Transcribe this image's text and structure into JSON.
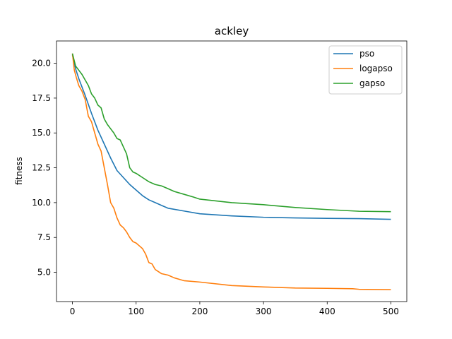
{
  "chart_data": {
    "type": "line",
    "title": "ackley",
    "xlabel": "",
    "ylabel": "fitness",
    "xlim": [
      -25,
      525
    ],
    "ylim": [
      2.9,
      21.6
    ],
    "xticks": [
      0,
      100,
      200,
      300,
      400,
      500
    ],
    "yticks": [
      5.0,
      7.5,
      10.0,
      12.5,
      15.0,
      17.5,
      20.0
    ],
    "grid": false,
    "legend_position": "top-right",
    "series": [
      {
        "name": "pso",
        "color": "#1f77b4",
        "x": [
          0,
          5,
          10,
          20,
          30,
          40,
          50,
          60,
          70,
          80,
          90,
          100,
          110,
          120,
          130,
          140,
          150,
          175,
          200,
          250,
          300,
          350,
          400,
          450,
          500
        ],
        "y": [
          20.6,
          19.6,
          18.9,
          17.7,
          16.4,
          15.2,
          14.2,
          13.2,
          12.3,
          11.8,
          11.3,
          10.9,
          10.5,
          10.2,
          10.0,
          9.8,
          9.6,
          9.4,
          9.2,
          9.05,
          8.95,
          8.9,
          8.87,
          8.85,
          8.8
        ]
      },
      {
        "name": "logapso",
        "color": "#ff7f0e",
        "x": [
          0,
          3,
          6,
          10,
          15,
          20,
          25,
          30,
          35,
          40,
          45,
          50,
          55,
          60,
          65,
          70,
          75,
          80,
          85,
          90,
          95,
          100,
          105,
          110,
          115,
          120,
          125,
          130,
          140,
          150,
          160,
          175,
          200,
          250,
          300,
          350,
          400,
          440,
          450,
          500
        ],
        "y": [
          20.7,
          19.5,
          19.0,
          18.4,
          18.0,
          17.4,
          16.2,
          15.8,
          15.0,
          14.2,
          13.7,
          12.5,
          11.3,
          10.0,
          9.6,
          8.9,
          8.4,
          8.2,
          7.9,
          7.5,
          7.2,
          7.1,
          6.9,
          6.7,
          6.3,
          5.7,
          5.6,
          5.2,
          4.9,
          4.8,
          4.6,
          4.4,
          4.3,
          4.05,
          3.95,
          3.87,
          3.85,
          3.82,
          3.78,
          3.75
        ]
      },
      {
        "name": "gapso",
        "color": "#2ca02c",
        "x": [
          0,
          5,
          10,
          15,
          20,
          25,
          30,
          35,
          40,
          45,
          50,
          55,
          60,
          65,
          70,
          75,
          80,
          85,
          90,
          95,
          100,
          110,
          120,
          130,
          140,
          150,
          160,
          175,
          190,
          200,
          250,
          300,
          350,
          400,
          450,
          500
        ],
        "y": [
          20.7,
          19.8,
          19.5,
          19.2,
          18.8,
          18.4,
          17.8,
          17.5,
          17.0,
          16.8,
          16.0,
          15.6,
          15.3,
          15.0,
          14.6,
          14.5,
          14.0,
          13.5,
          12.5,
          12.2,
          12.1,
          11.8,
          11.5,
          11.3,
          11.2,
          11.0,
          10.8,
          10.6,
          10.4,
          10.25,
          10.0,
          9.85,
          9.65,
          9.5,
          9.38,
          9.35
        ]
      }
    ]
  }
}
